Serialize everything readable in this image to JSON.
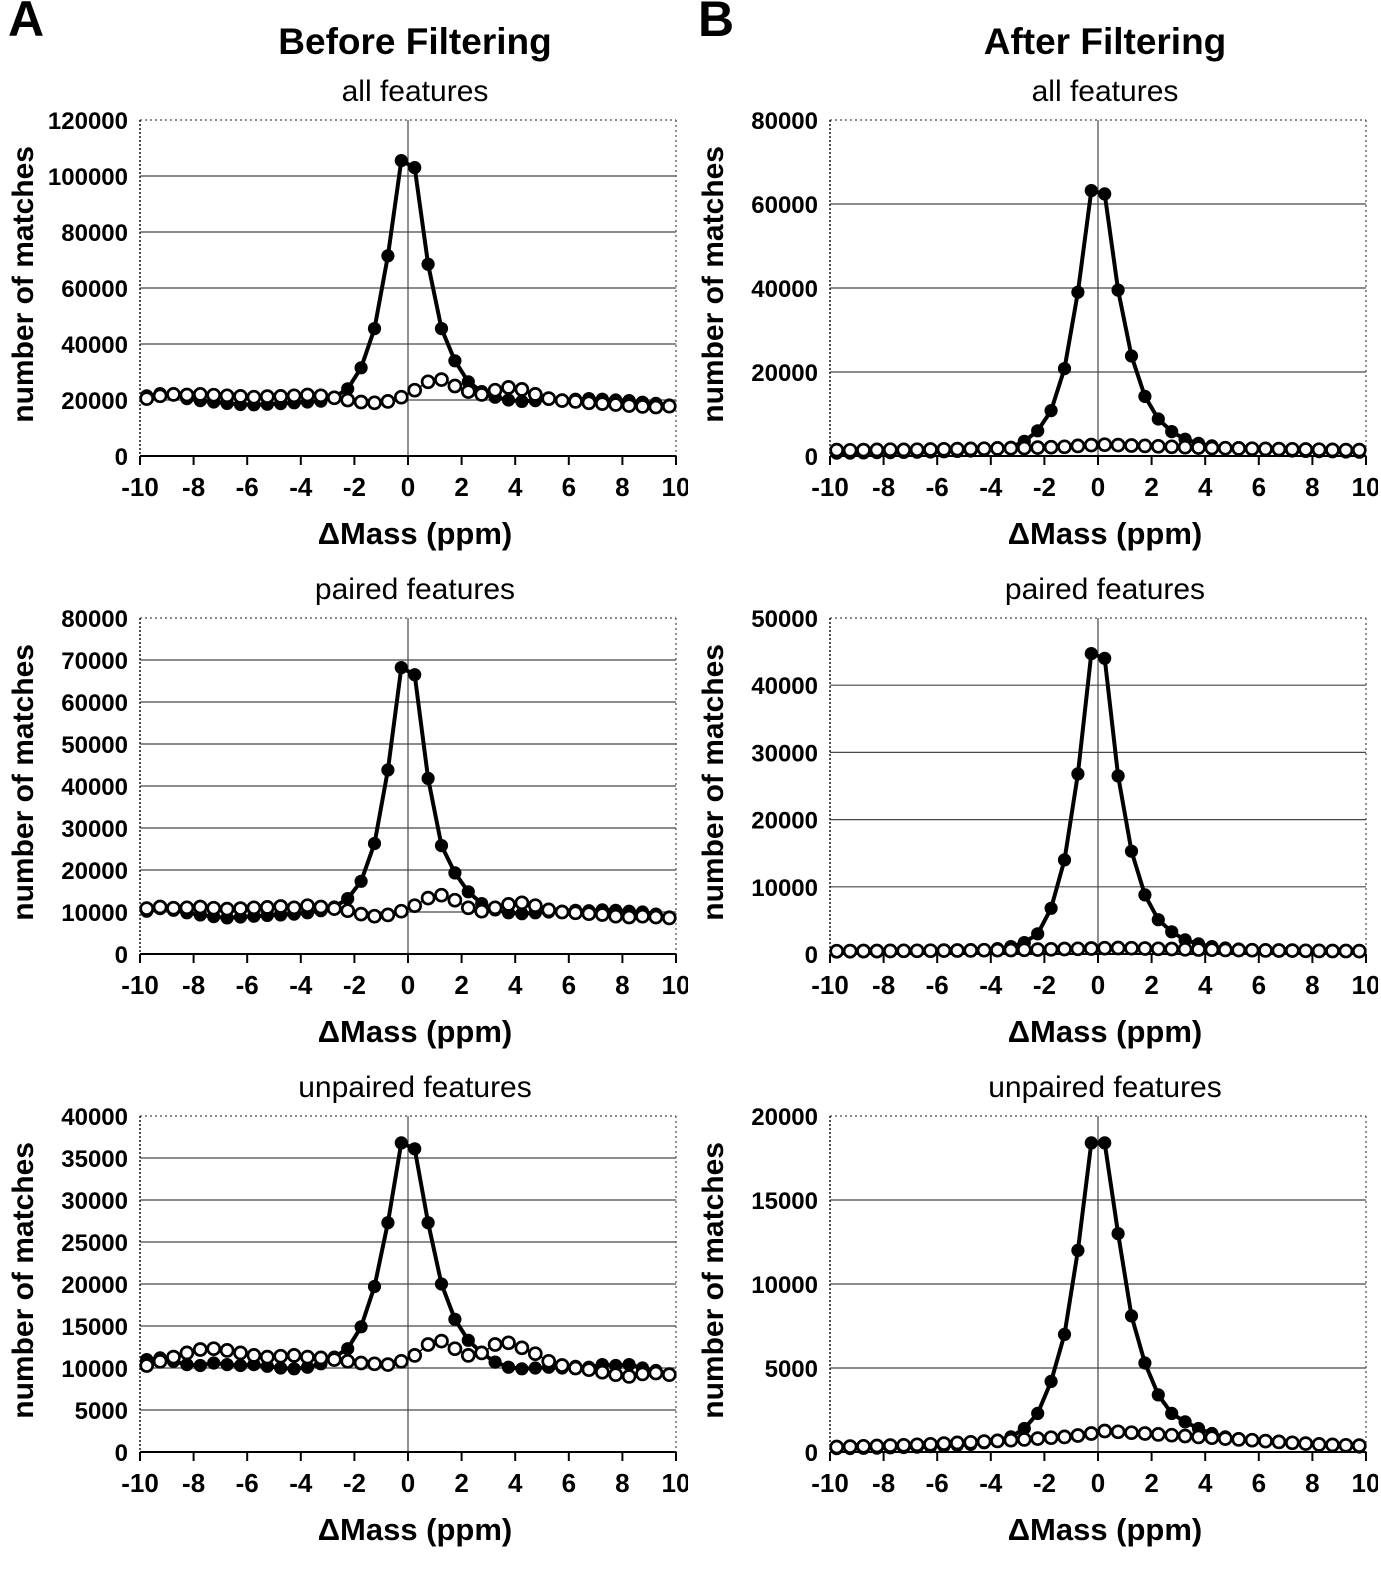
{
  "figure": {
    "panels": [
      {
        "letter": "A",
        "title": "Before Filtering"
      },
      {
        "letter": "B",
        "title": "After Filtering"
      }
    ]
  },
  "chart_data": [
    {
      "type": "scatter",
      "panel": "A",
      "title": "all features",
      "xlabel": "ΔMass (ppm)",
      "ylabel": "number of matches",
      "xlim": [
        -10,
        10
      ],
      "ylim": [
        0,
        120000
      ],
      "xticks": [
        -10,
        -8,
        -6,
        -4,
        -2,
        0,
        2,
        4,
        6,
        8,
        10
      ],
      "yticks": [
        0,
        20000,
        40000,
        60000,
        80000,
        100000,
        120000
      ],
      "grid": "horizontal",
      "zero_line": true,
      "legend": "none",
      "x": [
        -9.75,
        -9.25,
        -8.75,
        -8.25,
        -7.75,
        -7.25,
        -6.75,
        -6.25,
        -5.75,
        -5.25,
        -4.75,
        -4.25,
        -3.75,
        -3.25,
        -2.75,
        -2.25,
        -1.75,
        -1.25,
        -0.75,
        -0.25,
        0.25,
        0.75,
        1.25,
        1.75,
        2.25,
        2.75,
        3.25,
        3.75,
        4.25,
        4.75,
        5.25,
        5.75,
        6.25,
        6.75,
        7.25,
        7.75,
        8.25,
        8.75,
        9.25,
        9.75
      ],
      "series": [
        {
          "name": "filled circles",
          "marker": "filled-circle",
          "values": [
            21500,
            22300,
            21800,
            20500,
            19800,
            19300,
            18800,
            18400,
            18300,
            18500,
            18700,
            19000,
            19300,
            19600,
            21000,
            24000,
            31500,
            45500,
            71500,
            105500,
            103000,
            68500,
            45500,
            34000,
            26500,
            23000,
            21000,
            20000,
            19500,
            19800,
            20200,
            20000,
            20300,
            20500,
            20300,
            20000,
            19800,
            19200,
            18800,
            18200
          ]
        },
        {
          "name": "open circles",
          "marker": "open-circle",
          "values": [
            20500,
            21500,
            22000,
            21800,
            22000,
            21700,
            21500,
            21300,
            21000,
            21200,
            21300,
            21500,
            21800,
            21500,
            20800,
            20000,
            19300,
            19000,
            19500,
            21000,
            23500,
            26500,
            27300,
            25000,
            23000,
            22000,
            23500,
            24500,
            23800,
            22000,
            20500,
            19800,
            19500,
            19000,
            18700,
            18400,
            18000,
            17700,
            17500,
            17800
          ]
        }
      ]
    },
    {
      "type": "scatter",
      "panel": "A",
      "title": "paired features",
      "xlabel": "ΔMass (ppm)",
      "ylabel": "number of matches",
      "xlim": [
        -10,
        10
      ],
      "ylim": [
        0,
        80000
      ],
      "xticks": [
        -10,
        -8,
        -6,
        -4,
        -2,
        0,
        2,
        4,
        6,
        8,
        10
      ],
      "yticks": [
        0,
        10000,
        20000,
        30000,
        40000,
        50000,
        60000,
        70000,
        80000
      ],
      "grid": "horizontal",
      "zero_line": true,
      "legend": "none",
      "x": [
        -9.75,
        -9.25,
        -8.75,
        -8.25,
        -7.75,
        -7.25,
        -6.75,
        -6.25,
        -5.75,
        -5.25,
        -4.75,
        -4.25,
        -3.75,
        -3.25,
        -2.75,
        -2.25,
        -1.75,
        -1.25,
        -0.75,
        -0.25,
        0.25,
        0.75,
        1.25,
        1.75,
        2.25,
        2.75,
        3.25,
        3.75,
        4.25,
        4.75,
        5.25,
        5.75,
        6.25,
        6.75,
        7.25,
        7.75,
        8.25,
        8.75,
        9.25,
        9.75
      ],
      "series": [
        {
          "name": "filled circles",
          "marker": "filled-circle",
          "values": [
            10200,
            10800,
            10400,
            9800,
            9300,
            8900,
            8600,
            8800,
            9000,
            9200,
            9300,
            9500,
            9800,
            10300,
            11200,
            13200,
            17300,
            26300,
            43800,
            68200,
            66500,
            41800,
            25800,
            19300,
            14800,
            12000,
            10500,
            9800,
            9600,
            9800,
            10000,
            10200,
            10400,
            10300,
            10500,
            10400,
            10200,
            10000,
            9500,
            8800
          ]
        },
        {
          "name": "open circles",
          "marker": "open-circle",
          "values": [
            10800,
            11200,
            10900,
            11000,
            11200,
            10900,
            10700,
            10800,
            11000,
            11100,
            11300,
            11000,
            11500,
            11200,
            10800,
            10300,
            9500,
            9000,
            9300,
            10200,
            11500,
            13300,
            14000,
            12800,
            11000,
            10200,
            11000,
            11800,
            12200,
            11500,
            10500,
            10000,
            9800,
            9600,
            9400,
            9000,
            8800,
            9000,
            8800,
            8600
          ]
        }
      ]
    },
    {
      "type": "scatter",
      "panel": "A",
      "title": "unpaired features",
      "xlabel": "ΔMass (ppm)",
      "ylabel": "number of matches",
      "xlim": [
        -10,
        10
      ],
      "ylim": [
        0,
        40000
      ],
      "xticks": [
        -10,
        -8,
        -6,
        -4,
        -2,
        0,
        2,
        4,
        6,
        8,
        10
      ],
      "yticks": [
        0,
        5000,
        10000,
        15000,
        20000,
        25000,
        30000,
        35000,
        40000
      ],
      "grid": "horizontal",
      "zero_line": true,
      "legend": "none",
      "x": [
        -9.75,
        -9.25,
        -8.75,
        -8.25,
        -7.75,
        -7.25,
        -6.75,
        -6.25,
        -5.75,
        -5.25,
        -4.75,
        -4.25,
        -3.75,
        -3.25,
        -2.75,
        -2.25,
        -1.75,
        -1.25,
        -0.75,
        -0.25,
        0.25,
        0.75,
        1.25,
        1.75,
        2.25,
        2.75,
        3.25,
        3.75,
        4.25,
        4.75,
        5.25,
        5.75,
        6.25,
        6.75,
        7.25,
        7.75,
        8.25,
        8.75,
        9.25,
        9.75
      ],
      "series": [
        {
          "name": "filled circles",
          "marker": "filled-circle",
          "values": [
            11000,
            11200,
            10800,
            10400,
            10300,
            10600,
            10400,
            10300,
            10400,
            10200,
            10000,
            9900,
            10100,
            10500,
            11300,
            12300,
            14900,
            19700,
            27300,
            36800,
            36100,
            27300,
            20000,
            15800,
            13300,
            11800,
            10700,
            10100,
            9900,
            10000,
            10100,
            10000,
            10200,
            10100,
            10400,
            10300,
            10400,
            10000,
            9700,
            9300
          ]
        },
        {
          "name": "open circles",
          "marker": "open-circle",
          "values": [
            10300,
            10800,
            11300,
            11800,
            12200,
            12300,
            12100,
            11800,
            11500,
            11300,
            11400,
            11500,
            11300,
            11200,
            11000,
            10800,
            10600,
            10500,
            10400,
            10800,
            11500,
            12800,
            13200,
            12300,
            11500,
            11800,
            12800,
            13000,
            12400,
            11700,
            10800,
            10300,
            10000,
            9800,
            9500,
            9200,
            9000,
            9300,
            9400,
            9200
          ]
        }
      ]
    },
    {
      "type": "scatter",
      "panel": "B",
      "title": "all features",
      "xlabel": "ΔMass (ppm)",
      "ylabel": "number of matches",
      "xlim": [
        -10,
        10
      ],
      "ylim": [
        0,
        80000
      ],
      "xticks": [
        -10,
        -8,
        -6,
        -4,
        -2,
        0,
        2,
        4,
        6,
        8,
        10
      ],
      "yticks": [
        0,
        20000,
        40000,
        60000,
        80000
      ],
      "grid": "horizontal",
      "zero_line": true,
      "legend": "none",
      "x": [
        -9.75,
        -9.25,
        -8.75,
        -8.25,
        -7.75,
        -7.25,
        -6.75,
        -6.25,
        -5.75,
        -5.25,
        -4.75,
        -4.25,
        -3.75,
        -3.25,
        -2.75,
        -2.25,
        -1.75,
        -1.25,
        -0.75,
        -0.25,
        0.25,
        0.75,
        1.25,
        1.75,
        2.25,
        2.75,
        3.25,
        3.75,
        4.25,
        4.75,
        5.25,
        5.75,
        6.25,
        6.75,
        7.25,
        7.75,
        8.25,
        8.75,
        9.25,
        9.75
      ],
      "series": [
        {
          "name": "filled circles",
          "marker": "filled-circle",
          "values": [
            700,
            700,
            750,
            800,
            800,
            850,
            900,
            950,
            1000,
            1100,
            1200,
            1400,
            1700,
            2100,
            3500,
            6000,
            10800,
            20800,
            39000,
            63200,
            62400,
            39500,
            23800,
            14200,
            8800,
            5800,
            4000,
            3000,
            2400,
            2000,
            1700,
            1500,
            1400,
            1300,
            1200,
            1100,
            1050,
            1000,
            950,
            900
          ]
        },
        {
          "name": "open circles",
          "marker": "open-circle",
          "values": [
            1400,
            1350,
            1400,
            1450,
            1500,
            1450,
            1500,
            1550,
            1600,
            1650,
            1700,
            1750,
            1800,
            1850,
            1900,
            2000,
            2100,
            2200,
            2400,
            2600,
            2700,
            2600,
            2500,
            2400,
            2300,
            2200,
            2100,
            2000,
            1900,
            1850,
            1800,
            1750,
            1700,
            1650,
            1600,
            1550,
            1500,
            1450,
            1400,
            1400
          ]
        }
      ]
    },
    {
      "type": "scatter",
      "panel": "B",
      "title": "paired features",
      "xlabel": "ΔMass (ppm)",
      "ylabel": "number of matches",
      "xlim": [
        -10,
        10
      ],
      "ylim": [
        0,
        50000
      ],
      "xticks": [
        -10,
        -8,
        -6,
        -4,
        -2,
        0,
        2,
        4,
        6,
        8,
        10
      ],
      "yticks": [
        0,
        10000,
        20000,
        30000,
        40000,
        50000
      ],
      "grid": "horizontal",
      "zero_line": true,
      "legend": "none",
      "x": [
        -9.75,
        -9.25,
        -8.75,
        -8.25,
        -7.75,
        -7.25,
        -6.75,
        -6.25,
        -5.75,
        -5.25,
        -4.75,
        -4.25,
        -3.75,
        -3.25,
        -2.75,
        -2.25,
        -1.75,
        -1.25,
        -0.75,
        -0.25,
        0.25,
        0.75,
        1.25,
        1.75,
        2.25,
        2.75,
        3.25,
        3.75,
        4.25,
        4.75,
        5.25,
        5.75,
        6.25,
        6.75,
        7.25,
        7.75,
        8.25,
        8.75,
        9.25,
        9.75
      ],
      "series": [
        {
          "name": "filled circles",
          "marker": "filled-circle",
          "values": [
            300,
            300,
            320,
            340,
            350,
            380,
            400,
            420,
            450,
            500,
            550,
            650,
            800,
            1100,
            1700,
            3000,
            6800,
            14000,
            26800,
            44700,
            44000,
            26500,
            15300,
            8800,
            5100,
            3300,
            2100,
            1500,
            1100,
            900,
            750,
            650,
            600,
            550,
            500,
            460,
            430,
            400,
            380,
            350
          ]
        },
        {
          "name": "open circles",
          "marker": "open-circle",
          "values": [
            420,
            430,
            440,
            450,
            460,
            470,
            480,
            490,
            500,
            520,
            540,
            560,
            580,
            600,
            630,
            660,
            700,
            740,
            780,
            820,
            860,
            900,
            860,
            820,
            780,
            740,
            700,
            670,
            640,
            610,
            580,
            560,
            540,
            520,
            500,
            480,
            460,
            450,
            440,
            430
          ]
        }
      ]
    },
    {
      "type": "scatter",
      "panel": "B",
      "title": "unpaired features",
      "xlabel": "ΔMass (ppm)",
      "ylabel": "number of matches",
      "xlim": [
        -10,
        10
      ],
      "ylim": [
        0,
        20000
      ],
      "xticks": [
        -10,
        -8,
        -6,
        -4,
        -2,
        0,
        2,
        4,
        6,
        8,
        10
      ],
      "yticks": [
        0,
        5000,
        10000,
        15000,
        20000
      ],
      "grid": "horizontal",
      "zero_line": true,
      "legend": "none",
      "x": [
        -9.75,
        -9.25,
        -8.75,
        -8.25,
        -7.75,
        -7.25,
        -6.75,
        -6.25,
        -5.75,
        -5.25,
        -4.75,
        -4.25,
        -3.75,
        -3.25,
        -2.75,
        -2.25,
        -1.75,
        -1.25,
        -0.75,
        -0.25,
        0.25,
        0.75,
        1.25,
        1.75,
        2.25,
        2.75,
        3.25,
        3.75,
        4.25,
        4.75,
        5.25,
        5.75,
        6.25,
        6.75,
        7.25,
        7.75,
        8.25,
        8.75,
        9.25,
        9.75
      ],
      "series": [
        {
          "name": "filled circles",
          "marker": "filled-circle",
          "values": [
            200,
            210,
            220,
            230,
            250,
            270,
            290,
            320,
            350,
            400,
            450,
            550,
            700,
            900,
            1400,
            2300,
            4200,
            7000,
            12000,
            18400,
            18400,
            13000,
            8100,
            5300,
            3400,
            2300,
            1800,
            1400,
            1100,
            900,
            800,
            700,
            650,
            600,
            550,
            500,
            450,
            400,
            350,
            300
          ]
        },
        {
          "name": "open circles",
          "marker": "open-circle",
          "values": [
            300,
            320,
            340,
            360,
            380,
            400,
            430,
            460,
            500,
            540,
            580,
            620,
            660,
            700,
            750,
            800,
            850,
            900,
            980,
            1100,
            1250,
            1200,
            1150,
            1100,
            1050,
            1000,
            950,
            900,
            850,
            800,
            750,
            700,
            650,
            600,
            550,
            500,
            450,
            420,
            400,
            380
          ]
        }
      ]
    }
  ]
}
